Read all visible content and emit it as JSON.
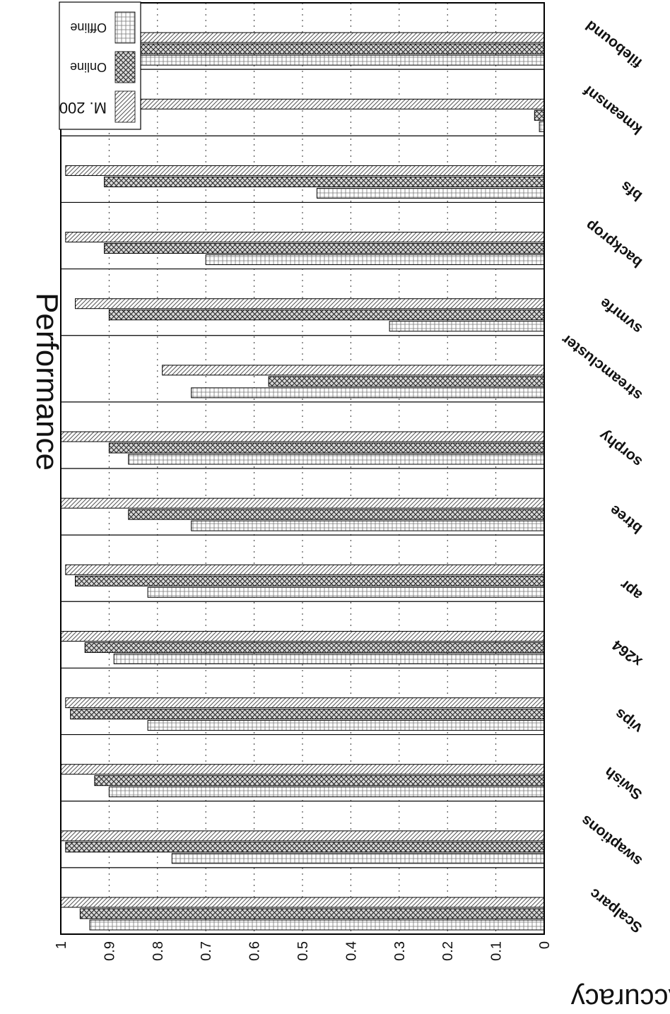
{
  "chart_data": {
    "type": "bar",
    "orientation": "rotated-180",
    "title": "Performance",
    "ylabel": "Accuracy",
    "xlabel": "",
    "ylim": [
      0,
      1
    ],
    "yticks": [
      "0",
      "0.1",
      "0.2",
      "0.3",
      "0.4",
      "0.5",
      "0.6",
      "0.7",
      "0.8",
      "0.9",
      "1"
    ],
    "grid": "dotted",
    "legend_position": "top-right",
    "categories": [
      "Scalparc",
      "swaptions",
      "Swish",
      "vips",
      "x264",
      "apr",
      "btree",
      "sorphy",
      "streamcluster",
      "svmrfe",
      "backprop",
      "bfs",
      "kmeansnf",
      "filebound"
    ],
    "series": [
      {
        "name": "M. 200",
        "pattern": "diagonal-hatch",
        "values": [
          1.0,
          1.0,
          1.0,
          0.99,
          1.0,
          0.99,
          1.0,
          1.0,
          0.79,
          0.97,
          0.99,
          0.99,
          0.95,
          1.0
        ]
      },
      {
        "name": "Online",
        "pattern": "cross-hatch",
        "values": [
          0.96,
          0.99,
          0.93,
          0.98,
          0.95,
          0.97,
          0.86,
          0.9,
          0.57,
          0.9,
          0.91,
          0.91,
          0.02,
          0.93
        ]
      },
      {
        "name": "Offline",
        "pattern": "grid",
        "values": [
          0.94,
          0.77,
          0.9,
          0.82,
          0.89,
          0.82,
          0.73,
          0.86,
          0.73,
          0.32,
          0.7,
          0.47,
          0.01,
          0.9
        ]
      }
    ]
  }
}
